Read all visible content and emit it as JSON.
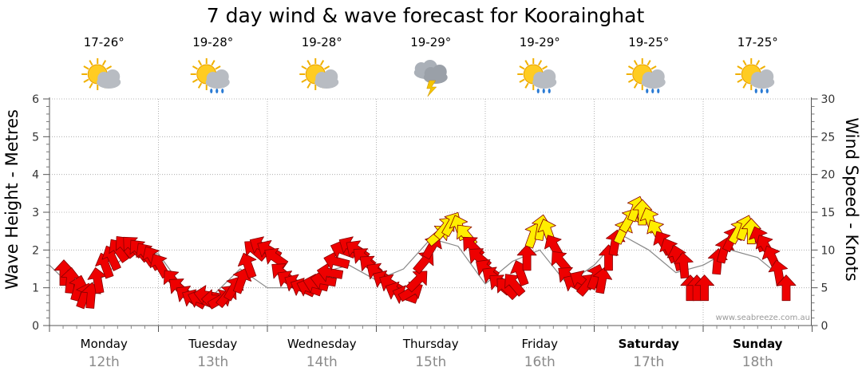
{
  "chart_data": {
    "type": "line",
    "title": "7 day wind & wave forecast for Koorainghat",
    "ylabel_left": "Wave Height - Metres",
    "ylabel_right": "Wind Speed - Knots",
    "ylim_left": [
      0,
      6
    ],
    "ylim_right": [
      0,
      30
    ],
    "left_ticks": [
      "0",
      "1",
      "2",
      "3",
      "4",
      "5",
      "6"
    ],
    "right_ticks": [
      "0",
      "5",
      "10",
      "15",
      "20",
      "25",
      "30"
    ],
    "grid": true,
    "watermark": "www.seabreeze.com.au",
    "days": [
      {
        "name": "Monday",
        "date": "12th",
        "temp": "17-26°",
        "icon": "sun-cloud-icon",
        "bold": false
      },
      {
        "name": "Tuesday",
        "date": "13th",
        "temp": "19-28°",
        "icon": "sun-cloud-rain-icon",
        "bold": false
      },
      {
        "name": "Wednesday",
        "date": "14th",
        "temp": "19-28°",
        "icon": "sun-cloud-icon",
        "bold": false
      },
      {
        "name": "Thursday",
        "date": "15th",
        "temp": "19-29°",
        "icon": "storm-cloud-icon",
        "bold": false
      },
      {
        "name": "Friday",
        "date": "16th",
        "temp": "19-29°",
        "icon": "sun-cloud-rain-icon",
        "bold": false
      },
      {
        "name": "Saturday",
        "date": "17th",
        "temp": "19-25°",
        "icon": "sun-cloud-rain-icon",
        "bold": true
      },
      {
        "name": "Sunday",
        "date": "18th",
        "temp": "17-25°",
        "icon": "sun-cloud-rain-icon",
        "bold": true
      }
    ],
    "wave_height_m": [
      {
        "day": 0.0,
        "v": 1.6
      },
      {
        "day": 0.25,
        "v": 0.9
      },
      {
        "day": 0.5,
        "v": 1.3
      },
      {
        "day": 0.75,
        "v": 2.0
      },
      {
        "day": 1.0,
        "v": 1.9
      },
      {
        "day": 1.25,
        "v": 0.9
      },
      {
        "day": 1.5,
        "v": 0.8
      },
      {
        "day": 1.75,
        "v": 1.5
      },
      {
        "day": 2.0,
        "v": 1.0
      },
      {
        "day": 2.25,
        "v": 1.0
      },
      {
        "day": 2.5,
        "v": 1.4
      },
      {
        "day": 2.75,
        "v": 1.6
      },
      {
        "day": 3.0,
        "v": 1.2
      },
      {
        "day": 3.25,
        "v": 1.5
      },
      {
        "day": 3.5,
        "v": 2.3
      },
      {
        "day": 3.75,
        "v": 2.1
      },
      {
        "day": 4.0,
        "v": 1.1
      },
      {
        "day": 4.25,
        "v": 1.7
      },
      {
        "day": 4.5,
        "v": 2.0
      },
      {
        "day": 4.75,
        "v": 1.1
      },
      {
        "day": 5.0,
        "v": 1.6
      },
      {
        "day": 5.25,
        "v": 2.4
      },
      {
        "day": 5.5,
        "v": 2.0
      },
      {
        "day": 5.75,
        "v": 1.4
      },
      {
        "day": 6.0,
        "v": 1.6
      },
      {
        "day": 6.25,
        "v": 2.0
      },
      {
        "day": 6.5,
        "v": 1.8
      },
      {
        "day": 6.75,
        "v": 1.2
      }
    ],
    "wind_kts": [
      {
        "day": 0.0,
        "v": 7,
        "dir": 0
      },
      {
        "day": 0.06,
        "v": 6,
        "dir": 5
      },
      {
        "day": 0.13,
        "v": 5,
        "dir": 15
      },
      {
        "day": 0.19,
        "v": 4,
        "dir": 20
      },
      {
        "day": 0.25,
        "v": 4,
        "dir": 5
      },
      {
        "day": 0.31,
        "v": 6,
        "dir": -10
      },
      {
        "day": 0.38,
        "v": 8,
        "dir": -20
      },
      {
        "day": 0.44,
        "v": 9,
        "dir": -25
      },
      {
        "day": 0.5,
        "v": 10,
        "dir": -35
      },
      {
        "day": 0.56,
        "v": 10.5,
        "dir": -40
      },
      {
        "day": 0.63,
        "v": 10.5,
        "dir": -45
      },
      {
        "day": 0.69,
        "v": 10,
        "dir": -40
      },
      {
        "day": 0.75,
        "v": 9.5,
        "dir": -35
      },
      {
        "day": 0.81,
        "v": 9,
        "dir": -30
      },
      {
        "day": 0.88,
        "v": 8,
        "dir": -30
      },
      {
        "day": 1.0,
        "v": 6,
        "dir": -40
      },
      {
        "day": 1.06,
        "v": 5,
        "dir": -50
      },
      {
        "day": 1.13,
        "v": 4,
        "dir": -55
      },
      {
        "day": 1.19,
        "v": 3.5,
        "dir": -60
      },
      {
        "day": 1.25,
        "v": 3.5,
        "dir": -70
      },
      {
        "day": 1.31,
        "v": 4,
        "dir": -80
      },
      {
        "day": 1.38,
        "v": 3.5,
        "dir": -90
      },
      {
        "day": 1.44,
        "v": 3.5,
        "dir": 60
      },
      {
        "day": 1.5,
        "v": 4,
        "dir": 40
      },
      {
        "day": 1.56,
        "v": 5,
        "dir": 30
      },
      {
        "day": 1.63,
        "v": 6,
        "dir": 20
      },
      {
        "day": 1.69,
        "v": 8,
        "dir": -20
      },
      {
        "day": 1.75,
        "v": 10,
        "dir": -50
      },
      {
        "day": 1.81,
        "v": 10.5,
        "dir": -60
      },
      {
        "day": 1.88,
        "v": 10,
        "dir": -60
      },
      {
        "day": 1.94,
        "v": 9,
        "dir": -55
      },
      {
        "day": 2.0,
        "v": 7,
        "dir": -50
      },
      {
        "day": 2.06,
        "v": 6,
        "dir": -55
      },
      {
        "day": 2.13,
        "v": 5.5,
        "dir": -60
      },
      {
        "day": 2.19,
        "v": 5,
        "dir": -65
      },
      {
        "day": 2.25,
        "v": 5,
        "dir": -70
      },
      {
        "day": 2.31,
        "v": 5.5,
        "dir": -75
      },
      {
        "day": 2.38,
        "v": 6,
        "dir": -80
      },
      {
        "day": 2.44,
        "v": 7,
        "dir": -80
      },
      {
        "day": 2.5,
        "v": 8.5,
        "dir": -75
      },
      {
        "day": 2.56,
        "v": 10,
        "dir": -70
      },
      {
        "day": 2.63,
        "v": 10.5,
        "dir": -60
      },
      {
        "day": 2.69,
        "v": 10,
        "dir": -55
      },
      {
        "day": 2.75,
        "v": 9,
        "dir": -50
      },
      {
        "day": 2.81,
        "v": 8,
        "dir": -50
      },
      {
        "day": 2.88,
        "v": 7,
        "dir": -55
      },
      {
        "day": 2.94,
        "v": 6,
        "dir": -60
      },
      {
        "day": 3.0,
        "v": 5.5,
        "dir": -60
      },
      {
        "day": 3.06,
        "v": 4.5,
        "dir": -65
      },
      {
        "day": 3.13,
        "v": 4,
        "dir": -70
      },
      {
        "day": 3.19,
        "v": 4.5,
        "dir": 60
      },
      {
        "day": 3.25,
        "v": 6,
        "dir": 45
      },
      {
        "day": 3.31,
        "v": 8.5,
        "dir": 40
      },
      {
        "day": 3.38,
        "v": 10.5,
        "dir": 30
      },
      {
        "day": 3.44,
        "v": 12,
        "dir": 50
      },
      {
        "day": 3.5,
        "v": 13,
        "dir": 40
      },
      {
        "day": 3.56,
        "v": 13.5,
        "dir": 30
      },
      {
        "day": 3.63,
        "v": 13,
        "dir": -20
      },
      {
        "day": 3.69,
        "v": 12,
        "dir": -40
      },
      {
        "day": 3.75,
        "v": 10.5,
        "dir": -45
      },
      {
        "day": 3.81,
        "v": 9,
        "dir": -50
      },
      {
        "day": 3.88,
        "v": 7.5,
        "dir": -55
      },
      {
        "day": 3.94,
        "v": 6.5,
        "dir": -55
      },
      {
        "day": 4.0,
        "v": 5.5,
        "dir": -50
      },
      {
        "day": 4.06,
        "v": 5,
        "dir": -45
      },
      {
        "day": 4.13,
        "v": 5.5,
        "dir": -40
      },
      {
        "day": 4.19,
        "v": 7,
        "dir": -20
      },
      {
        "day": 4.25,
        "v": 9,
        "dir": 0
      },
      {
        "day": 4.31,
        "v": 12,
        "dir": 20
      },
      {
        "day": 4.38,
        "v": 13,
        "dir": 10
      },
      {
        "day": 4.44,
        "v": 12.5,
        "dir": -20
      },
      {
        "day": 4.5,
        "v": 10.5,
        "dir": -30
      },
      {
        "day": 4.56,
        "v": 8.5,
        "dir": -40
      },
      {
        "day": 4.63,
        "v": 6.5,
        "dir": -50
      },
      {
        "day": 4.69,
        "v": 5.5,
        "dir": -60
      },
      {
        "day": 4.75,
        "v": 6,
        "dir": -60
      },
      {
        "day": 4.81,
        "v": 5.5,
        "dir": 40
      },
      {
        "day": 4.88,
        "v": 6.5,
        "dir": 20
      },
      {
        "day": 4.94,
        "v": 6,
        "dir": 10
      },
      {
        "day": 5.0,
        "v": 9,
        "dir": 0
      },
      {
        "day": 5.06,
        "v": 11,
        "dir": 10
      },
      {
        "day": 5.13,
        "v": 12.5,
        "dir": 25
      },
      {
        "day": 5.19,
        "v": 14,
        "dir": 30
      },
      {
        "day": 5.25,
        "v": 15.5,
        "dir": 20
      },
      {
        "day": 5.31,
        "v": 15,
        "dir": 0
      },
      {
        "day": 5.38,
        "v": 14,
        "dir": -20
      },
      {
        "day": 5.44,
        "v": 12.5,
        "dir": -30
      },
      {
        "day": 5.5,
        "v": 11,
        "dir": -30
      },
      {
        "day": 5.56,
        "v": 10,
        "dir": -25
      },
      {
        "day": 5.63,
        "v": 9,
        "dir": -15
      },
      {
        "day": 5.69,
        "v": 8,
        "dir": -5
      },
      {
        "day": 5.75,
        "v": 5,
        "dir": 0
      },
      {
        "day": 5.81,
        "v": 5,
        "dir": 0
      },
      {
        "day": 5.88,
        "v": 5,
        "dir": 0
      },
      {
        "day": 6.0,
        "v": 8.5,
        "dir": 5
      },
      {
        "day": 6.06,
        "v": 10,
        "dir": 15
      },
      {
        "day": 6.13,
        "v": 11.5,
        "dir": 25
      },
      {
        "day": 6.19,
        "v": 12.5,
        "dir": 30
      },
      {
        "day": 6.25,
        "v": 13,
        "dir": 20
      },
      {
        "day": 6.31,
        "v": 12.5,
        "dir": 0
      },
      {
        "day": 6.38,
        "v": 11.5,
        "dir": -20
      },
      {
        "day": 6.44,
        "v": 10.5,
        "dir": -30
      },
      {
        "day": 6.5,
        "v": 9,
        "dir": -25
      },
      {
        "day": 6.56,
        "v": 7,
        "dir": -10
      },
      {
        "day": 6.63,
        "v": 5,
        "dir": 0
      }
    ],
    "colors": {
      "low_wind": "#ee0000",
      "high_wind": "#ffee00",
      "outline": "#880000",
      "wave_line": "#888888",
      "grid": "#a0a0a0"
    }
  }
}
